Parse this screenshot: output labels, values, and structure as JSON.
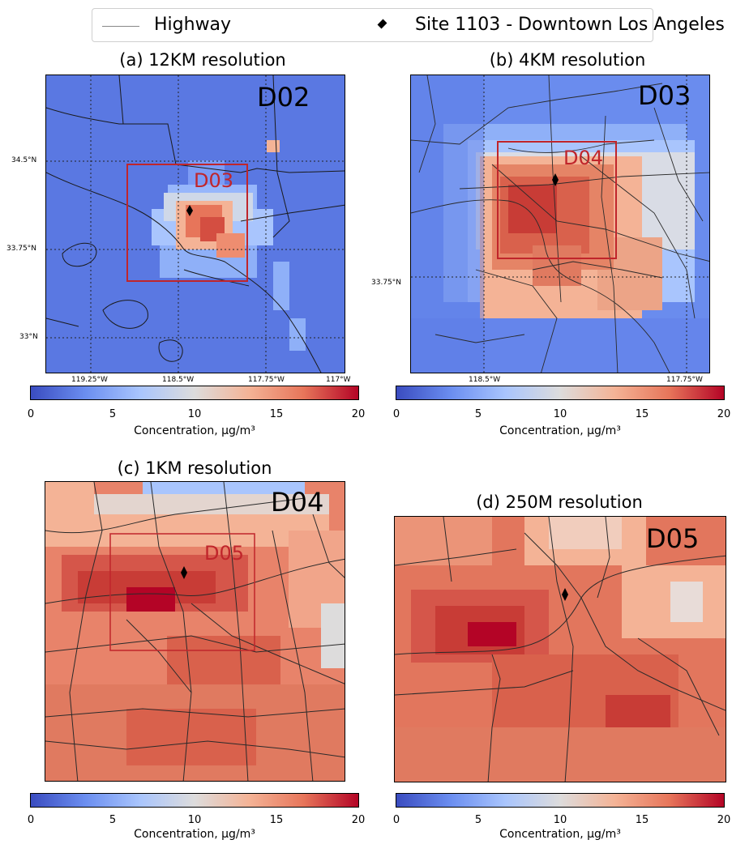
{
  "legend": {
    "highway_label": "Highway",
    "site_label": "Site 1103 - Downtown Los Angeles"
  },
  "colormap": {
    "name": "coolwarm",
    "min": 0,
    "max": 20,
    "ticks": [
      "0",
      "5",
      "10",
      "15",
      "20"
    ],
    "label": "Concentration, μg/m³",
    "colors": [
      "#3a4cc0",
      "#6b8ef0",
      "#a9c5fd",
      "#dddcdc",
      "#f4b396",
      "#e7755a",
      "#b40426"
    ]
  },
  "panels": {
    "a": {
      "title": "(a) 12KM resolution",
      "domain": "D02",
      "inner_domain": "D03",
      "lat_labels": [
        "34.5°N",
        "33.75°N",
        "33°N"
      ],
      "lon_labels": [
        "119.25°W",
        "118.5°W",
        "117.75°W",
        "117°W"
      ]
    },
    "b": {
      "title": "(b) 4KM resolution",
      "domain": "D03",
      "inner_domain": "D04",
      "lat_labels": [
        "33.75°N"
      ],
      "lon_labels": [
        "118.5°W",
        "117.75°W"
      ]
    },
    "c": {
      "title": "(c) 1KM resolution",
      "domain": "D04",
      "inner_domain": "D05"
    },
    "d": {
      "title": "(d) 250M resolution",
      "domain": "D05"
    }
  }
}
